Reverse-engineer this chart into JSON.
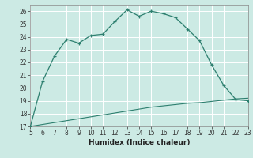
{
  "title": "",
  "xlabel": "Humidex (Indice chaleur)",
  "ylabel": "",
  "bg_color": "#cceae4",
  "line_color": "#2d7f6f",
  "grid_color": "#b0d8d0",
  "xlim": [
    5,
    23
  ],
  "ylim": [
    17,
    26.5
  ],
  "xticks": [
    5,
    6,
    7,
    8,
    9,
    10,
    11,
    12,
    13,
    14,
    15,
    16,
    17,
    18,
    19,
    20,
    21,
    22,
    23
  ],
  "yticks": [
    17,
    18,
    19,
    20,
    21,
    22,
    23,
    24,
    25,
    26
  ],
  "curve1_x": [
    5,
    6,
    7,
    8,
    9,
    10,
    11,
    12,
    13,
    14,
    15,
    16,
    17,
    18,
    19,
    20,
    21,
    22,
    23
  ],
  "curve1_y": [
    17.0,
    20.5,
    22.5,
    23.8,
    23.5,
    24.1,
    24.2,
    25.2,
    26.1,
    25.6,
    26.0,
    25.8,
    25.5,
    24.6,
    23.7,
    21.8,
    20.2,
    19.1,
    19.0
  ],
  "curve2_x": [
    5,
    6,
    7,
    8,
    9,
    10,
    11,
    12,
    13,
    14,
    15,
    16,
    17,
    18,
    19,
    20,
    21,
    22,
    23
  ],
  "curve2_y": [
    17.0,
    17.15,
    17.3,
    17.45,
    17.6,
    17.75,
    17.9,
    18.05,
    18.2,
    18.35,
    18.5,
    18.6,
    18.7,
    18.8,
    18.85,
    18.95,
    19.05,
    19.15,
    19.2
  ]
}
